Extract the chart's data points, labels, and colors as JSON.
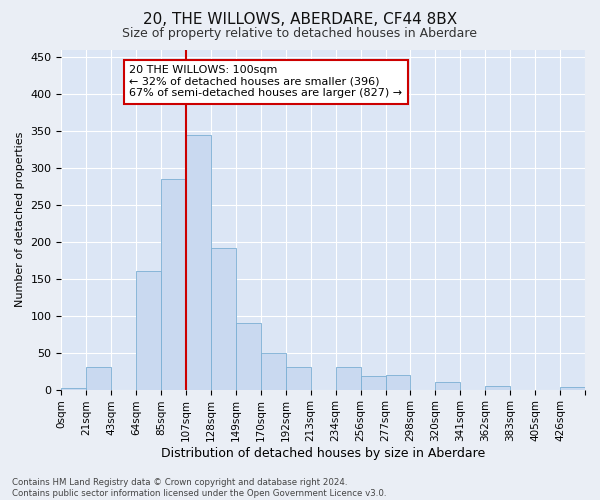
{
  "title1": "20, THE WILLOWS, ABERDARE, CF44 8BX",
  "title2": "Size of property relative to detached houses in Aberdare",
  "xlabel": "Distribution of detached houses by size in Aberdare",
  "ylabel": "Number of detached properties",
  "bin_labels": [
    "0sqm",
    "21sqm",
    "43sqm",
    "64sqm",
    "85sqm",
    "107sqm",
    "128sqm",
    "149sqm",
    "170sqm",
    "192sqm",
    "213sqm",
    "234sqm",
    "256sqm",
    "277sqm",
    "298sqm",
    "320sqm",
    "341sqm",
    "362sqm",
    "383sqm",
    "405sqm",
    "426sqm"
  ],
  "bar_values": [
    2,
    30,
    0,
    160,
    285,
    345,
    192,
    90,
    50,
    30,
    0,
    30,
    18,
    20,
    0,
    10,
    0,
    5,
    0,
    0,
    3
  ],
  "bar_color": "#c9d9f0",
  "bar_edge_color": "#7bafd4",
  "vline_x": 5.0,
  "vline_color": "#cc0000",
  "annotation_text": "20 THE WILLOWS: 100sqm\n← 32% of detached houses are smaller (396)\n67% of semi-detached houses are larger (827) →",
  "annotation_box_color": "#ffffff",
  "annotation_box_edge": "#cc0000",
  "footnote": "Contains HM Land Registry data © Crown copyright and database right 2024.\nContains public sector information licensed under the Open Government Licence v3.0.",
  "bg_color": "#eaeef5",
  "plot_bg_color": "#dce6f5",
  "grid_color": "#ffffff",
  "ylim": [
    0,
    460
  ],
  "yticks": [
    0,
    50,
    100,
    150,
    200,
    250,
    300,
    350,
    400,
    450
  ],
  "title1_fontsize": 11,
  "title2_fontsize": 9
}
